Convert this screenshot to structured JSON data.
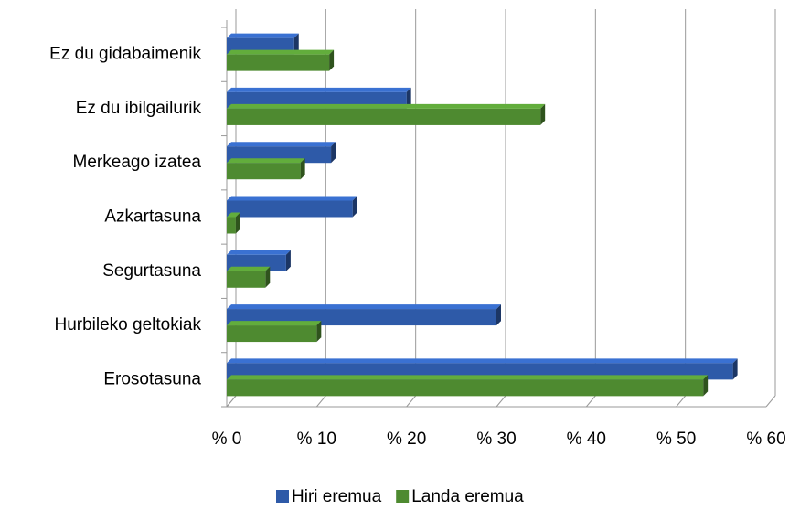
{
  "chart_data": {
    "type": "bar",
    "orientation": "horizontal",
    "categories": [
      "Ez du gidabaimenik",
      "Ez du ibilgailurik",
      "Merkeago izatea",
      "Azkartasuna",
      "Segurtasuna",
      "Hurbileko geltokiak",
      "Erosotasuna"
    ],
    "series": [
      {
        "name": "Hiri eremua",
        "color": "#2e5aa8",
        "values": [
          7.5,
          20,
          11.6,
          14,
          6.6,
          30,
          56.3
        ]
      },
      {
        "name": "Landa eremua",
        "color": "#4e8a30",
        "values": [
          11.4,
          34.9,
          8.2,
          1,
          4.3,
          10,
          53
        ]
      }
    ],
    "xlim": [
      0,
      60
    ],
    "xticks": [
      {
        "value": 0,
        "label": "% 0"
      },
      {
        "value": 10,
        "label": "% 10"
      },
      {
        "value": 20,
        "label": "% 20"
      },
      {
        "value": 30,
        "label": "% 30"
      },
      {
        "value": 40,
        "label": "% 40"
      },
      {
        "value": 50,
        "label": "% 50"
      },
      {
        "value": 60,
        "label": "% 60"
      }
    ],
    "grid": true,
    "legend": "bottom"
  }
}
